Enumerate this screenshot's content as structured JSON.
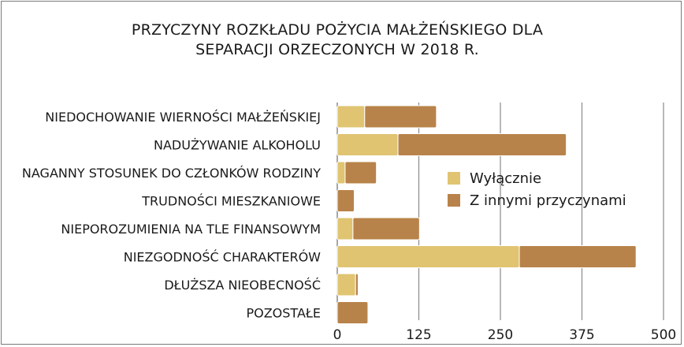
{
  "chart_data": {
    "type": "bar",
    "orientation": "horizontal",
    "stacked": true,
    "title_lines": [
      "PRZYCZYNY ROZKŁADU POŻYCIA MAŁŻEŃSKIEGO DLA",
      "SEPARACJI ORZECZONYCH W 2018 R."
    ],
    "categories": [
      "NIEDOCHOWANIE WIERNOŚCI MAŁŻEŃSKIEJ",
      "NADUŻYWANIE ALKOHOLU",
      "NAGANNY STOSUNEK DO CZŁONKÓW RODZINY",
      "TRUDNOŚCI MIESZKANIOWE",
      "NIEPOROZUMIENIA NA TLE FINANSOWYM",
      "NIEZGODNOŚĆ CHARAKTERÓW",
      "DŁUŻSZA NIEOBECNOŚĆ",
      "POZOSTAŁE"
    ],
    "series": [
      {
        "name": "Wyłącznie",
        "color": "#e0c472",
        "values": [
          42,
          93,
          12,
          0,
          24,
          279,
          28,
          0
        ]
      },
      {
        "name": "Z innymi przyczynami",
        "color": "#b8834a",
        "values": [
          110,
          258,
          48,
          26,
          102,
          179,
          4,
          47
        ]
      }
    ],
    "xlim": [
      0,
      500
    ],
    "xticks": [
      0,
      125,
      250,
      375,
      500
    ],
    "xtick_labels": [
      "0",
      "125",
      "250",
      "375",
      "500"
    ],
    "grid": true,
    "legend_position": "right"
  }
}
